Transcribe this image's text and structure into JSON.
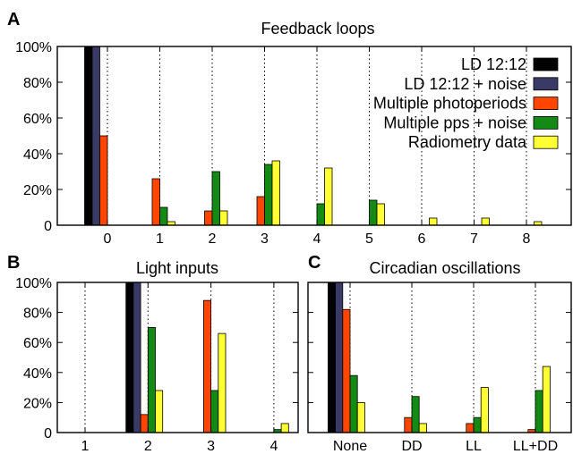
{
  "colors": {
    "LD 12:12": "#000000",
    "LD 12:12 + noise": "#3a3a66",
    "Multiple photoperiods": "#ff4500",
    "Multiple pps + noise": "#138a13",
    "Radiometry data": "#ffff33"
  },
  "chart_data": [
    {
      "panel": "A",
      "type": "bar",
      "title": "Feedback loops",
      "categories": [
        "0",
        "1",
        "2",
        "3",
        "4",
        "5",
        "6",
        "7",
        "8"
      ],
      "ylim": [
        0,
        100
      ],
      "yticks": [
        "0",
        "20%",
        "40%",
        "60%",
        "80%",
        "100%"
      ],
      "grid": "vertical dotted",
      "legend_position": "top-right",
      "series": [
        {
          "name": "LD 12:12",
          "values": [
            100,
            0,
            0,
            0,
            0,
            0,
            0,
            0,
            0
          ]
        },
        {
          "name": "LD 12:12 + noise",
          "values": [
            100,
            0,
            0,
            0,
            0,
            0,
            0,
            0,
            0
          ]
        },
        {
          "name": "Multiple photoperiods",
          "values": [
            50,
            26,
            8,
            16,
            0,
            0,
            0,
            0,
            0
          ]
        },
        {
          "name": "Multiple pps + noise",
          "values": [
            0,
            10,
            30,
            34,
            12,
            14,
            0,
            0,
            0
          ]
        },
        {
          "name": "Radiometry data",
          "values": [
            0,
            2,
            8,
            36,
            32,
            12,
            4,
            4,
            2
          ]
        }
      ]
    },
    {
      "panel": "B",
      "type": "bar",
      "title": "Light inputs",
      "categories": [
        "1",
        "2",
        "3",
        "4"
      ],
      "ylim": [
        0,
        100
      ],
      "yticks": [
        "0",
        "20%",
        "40%",
        "60%",
        "80%",
        "100%"
      ],
      "grid": "vertical dotted",
      "series": [
        {
          "name": "LD 12:12",
          "values": [
            0,
            100,
            0,
            0
          ]
        },
        {
          "name": "LD 12:12 + noise",
          "values": [
            0,
            100,
            0,
            0
          ]
        },
        {
          "name": "Multiple photoperiods",
          "values": [
            0,
            12,
            88,
            0
          ]
        },
        {
          "name": "Multiple pps + noise",
          "values": [
            0,
            70,
            28,
            2
          ]
        },
        {
          "name": "Radiometry data",
          "values": [
            0,
            28,
            66,
            6
          ]
        }
      ]
    },
    {
      "panel": "C",
      "type": "bar",
      "title": "Circadian oscillations",
      "categories": [
        "None",
        "DD",
        "LL",
        "LL+DD"
      ],
      "ylim": [
        0,
        100
      ],
      "grid": "vertical dotted",
      "series": [
        {
          "name": "LD 12:12",
          "values": [
            100,
            0,
            0,
            0
          ]
        },
        {
          "name": "LD 12:12 + noise",
          "values": [
            100,
            0,
            0,
            0
          ]
        },
        {
          "name": "Multiple photoperiods",
          "values": [
            82,
            10,
            6,
            2
          ]
        },
        {
          "name": "Multiple pps + noise",
          "values": [
            38,
            24,
            10,
            28
          ]
        },
        {
          "name": "Radiometry data",
          "values": [
            20,
            6,
            30,
            44
          ]
        }
      ]
    }
  ]
}
